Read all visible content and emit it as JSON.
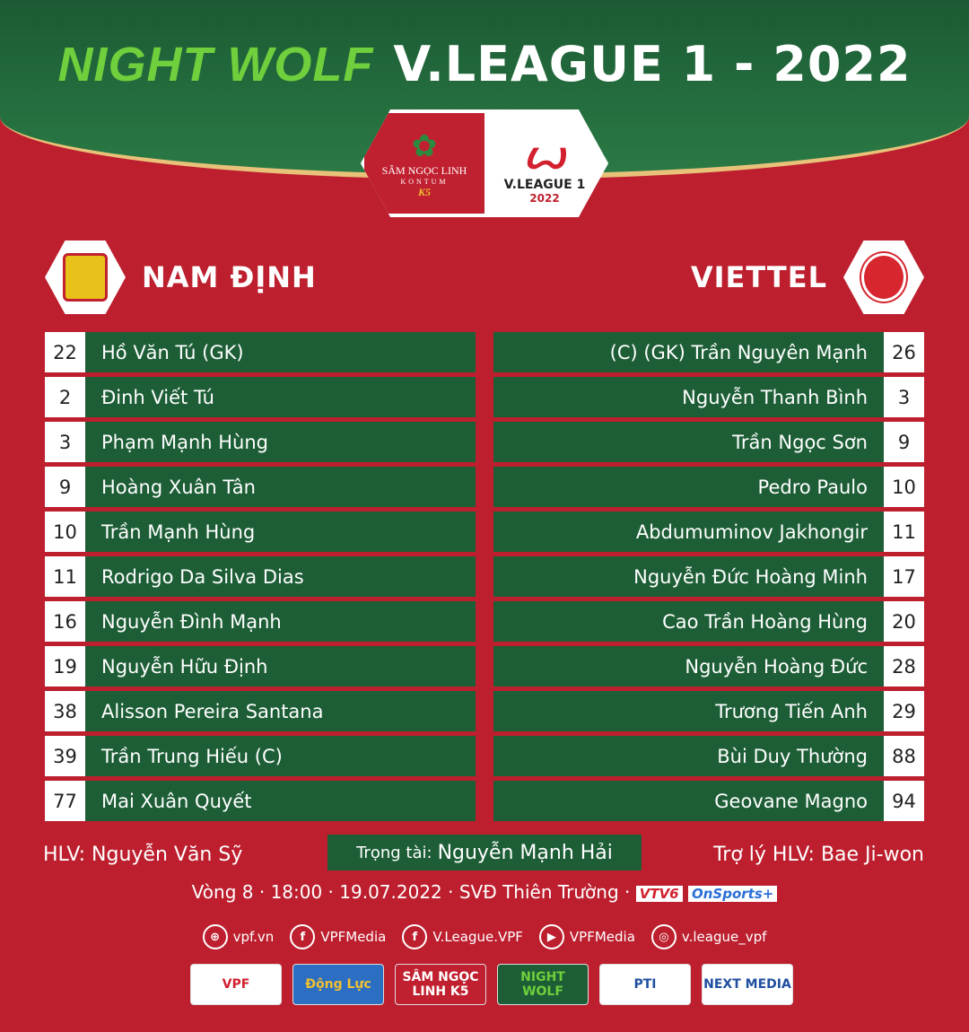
{
  "header": {
    "brand": "NIGHT WOLF",
    "title": "V.LEAGUE 1 - 2022",
    "badge_left": "SÂM NGỌC LINH",
    "badge_left_sub": "KONTUM",
    "badge_left_mark": "K5",
    "badge_right": "V.LEAGUE 1",
    "badge_year": "2022"
  },
  "home": {
    "name": "NAM ĐỊNH",
    "color": "#e8c21a",
    "players": [
      {
        "num": "22",
        "name": "Hồ Văn Tú (GK)"
      },
      {
        "num": "2",
        "name": "Đinh Viết Tú"
      },
      {
        "num": "3",
        "name": "Phạm Mạnh Hùng"
      },
      {
        "num": "9",
        "name": "Hoàng Xuân Tân"
      },
      {
        "num": "10",
        "name": "Trần Mạnh Hùng"
      },
      {
        "num": "11",
        "name": "Rodrigo Da Silva Dias"
      },
      {
        "num": "16",
        "name": "Nguyễn Đình Mạnh"
      },
      {
        "num": "19",
        "name": "Nguyễn Hữu Định"
      },
      {
        "num": "38",
        "name": "Alisson Pereira Santana"
      },
      {
        "num": "39",
        "name": "Trần Trung Hiếu (C)"
      },
      {
        "num": "77",
        "name": "Mai Xuân Quyết"
      }
    ]
  },
  "away": {
    "name": "VIETTEL",
    "color": "#d7262e",
    "players": [
      {
        "num": "26",
        "name": "(C) (GK) Trần Nguyên Mạnh"
      },
      {
        "num": "3",
        "name": "Nguyễn Thanh Bình"
      },
      {
        "num": "9",
        "name": "Trần Ngọc Sơn"
      },
      {
        "num": "10",
        "name": "Pedro Paulo"
      },
      {
        "num": "11",
        "name": "Abdumuminov Jakhongir"
      },
      {
        "num": "17",
        "name": "Nguyễn Đức Hoàng Minh"
      },
      {
        "num": "20",
        "name": "Cao Trần Hoàng Hùng"
      },
      {
        "num": "28",
        "name": "Nguyễn Hoàng Đức"
      },
      {
        "num": "29",
        "name": "Trương Tiến Anh"
      },
      {
        "num": "88",
        "name": "Bùi Duy Thường"
      },
      {
        "num": "94",
        "name": "Geovane Magno"
      }
    ]
  },
  "officials": {
    "home_coach": "HLV: Nguyễn Văn Sỹ",
    "referee_label": "Trọng tài:",
    "referee": "Nguyễn Mạnh Hải",
    "away_coach": "Trợ lý HLV: Bae Ji-won"
  },
  "match_info": "Vòng 8 · 18:00 · 19.07.2022 · SVĐ Thiên Trường ·",
  "broadcasters": [
    "VTV6",
    "OnSports+"
  ],
  "social": [
    {
      "icon": "globe-icon",
      "glyph": "⊕",
      "text": "vpf.vn"
    },
    {
      "icon": "facebook-icon",
      "glyph": "f",
      "text": "VPFMedia"
    },
    {
      "icon": "facebook-icon",
      "glyph": "f",
      "text": "V.League.VPF"
    },
    {
      "icon": "youtube-icon",
      "glyph": "▶",
      "text": "VPFMedia"
    },
    {
      "icon": "instagram-icon",
      "glyph": "◎",
      "text": "v.league_vpf"
    }
  ],
  "sponsors": [
    {
      "text": "VPF",
      "bg": "#ffffff",
      "fg": "#d2202f"
    },
    {
      "text": "Động Lực",
      "bg": "#2c6fc2",
      "fg": "#f0c030"
    },
    {
      "text": "SÂM NGỌC LINH K5",
      "bg": "#c0202f",
      "fg": "#ffffff"
    },
    {
      "text": "NIGHT WOLF",
      "bg": "#1d5e36",
      "fg": "#6fcf3c"
    },
    {
      "text": "PTI",
      "bg": "#ffffff",
      "fg": "#1f4fa0"
    },
    {
      "text": "NEXT MEDIA",
      "bg": "#ffffff",
      "fg": "#1f4fa0"
    }
  ]
}
